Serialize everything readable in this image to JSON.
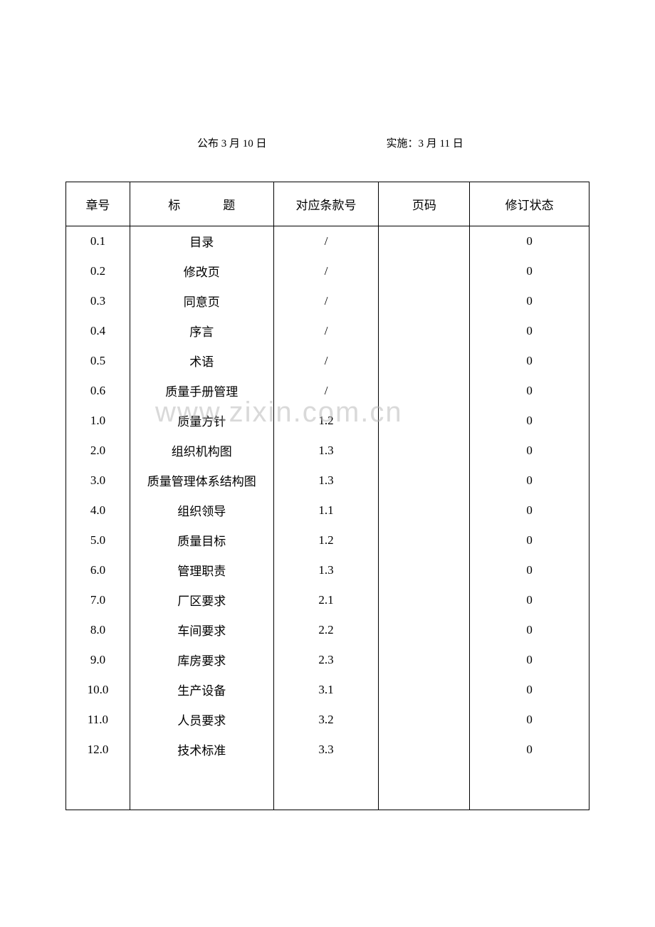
{
  "header": {
    "publish_date": "公布 3 月 10 日",
    "implement_date": "实施：3 月 11 日"
  },
  "watermark": "www.zixin.com.cn",
  "table": {
    "headers": {
      "chapter": "章号",
      "title_label": "标",
      "title_label2": "题",
      "clause": "对应条款号",
      "page": "页码",
      "revision": "修订状态"
    },
    "column_widths": {
      "chapter": 90,
      "title": 202,
      "clause": 148,
      "page": 128,
      "revision": 168
    },
    "rows": [
      {
        "chapter": "0.1",
        "title": "目录",
        "clause": "/",
        "page": "",
        "revision": "0"
      },
      {
        "chapter": "0.2",
        "title": "修改页",
        "clause": "/",
        "page": "",
        "revision": "0"
      },
      {
        "chapter": "0.3",
        "title": "同意页",
        "clause": "/",
        "page": "",
        "revision": "0"
      },
      {
        "chapter": "0.4",
        "title": "序言",
        "clause": "/",
        "page": "",
        "revision": "0"
      },
      {
        "chapter": "0.5",
        "title": "术语",
        "clause": "/",
        "page": "",
        "revision": "0"
      },
      {
        "chapter": "0.6",
        "title": "质量手册管理",
        "clause": "/",
        "page": "",
        "revision": "0"
      },
      {
        "chapter": "1.0",
        "title": "质量方针",
        "clause": "1.2",
        "page": "",
        "revision": "0"
      },
      {
        "chapter": "2.0",
        "title": "组织机构图",
        "clause": "1.3",
        "page": "",
        "revision": "0"
      },
      {
        "chapter": "3.0",
        "title": "质量管理体系结构图",
        "clause": "1.3",
        "page": "",
        "revision": "0"
      },
      {
        "chapter": "4.0",
        "title": "组织领导",
        "clause": "1.1",
        "page": "",
        "revision": "0"
      },
      {
        "chapter": "5.0",
        "title": "质量目标",
        "clause": "1.2",
        "page": "",
        "revision": "0"
      },
      {
        "chapter": "6.0",
        "title": "管理职责",
        "clause": "1.3",
        "page": "",
        "revision": "0"
      },
      {
        "chapter": "7.0",
        "title": "厂区要求",
        "clause": "2.1",
        "page": "",
        "revision": "0"
      },
      {
        "chapter": "8.0",
        "title": "车间要求",
        "clause": "2.2",
        "page": "",
        "revision": "0"
      },
      {
        "chapter": "9.0",
        "title": "库房要求",
        "clause": "2.3",
        "page": "",
        "revision": "0"
      },
      {
        "chapter": "10.0",
        "title": "生产设备",
        "clause": "3.1",
        "page": "",
        "revision": "0"
      },
      {
        "chapter": "11.0",
        "title": "人员要求",
        "clause": "3.2",
        "page": "",
        "revision": "0"
      },
      {
        "chapter": "12.0",
        "title": "技术标准",
        "clause": "3.3",
        "page": "",
        "revision": "0"
      }
    ],
    "background_color": "#ffffff",
    "border_color": "#000000",
    "text_color": "#000000",
    "header_fontsize": 17,
    "body_fontsize": 17,
    "header_row_height": 62,
    "body_row_height": 42
  }
}
